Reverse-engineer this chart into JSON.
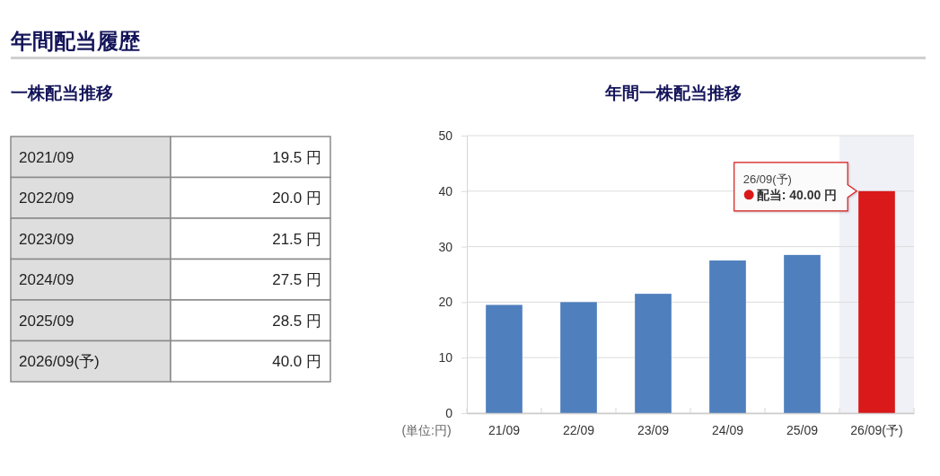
{
  "chart_data": [
    {
      "type": "other",
      "title": "年間配当履歴",
      "subtitle": "一株配当推移",
      "categories": [
        "2021/09",
        "2022/09",
        "2023/09",
        "2024/09",
        "2025/09",
        "2026/09(予)"
      ],
      "values": [
        19.5,
        20.0,
        21.5,
        27.5,
        28.5,
        40.0
      ],
      "value_labels": [
        "19.5 円",
        "20.0 円",
        "21.5 円",
        "27.5 円",
        "28.5 円",
        "40.0 円"
      ]
    },
    {
      "type": "bar",
      "title": "年間一株配当推移",
      "ylabel": "(単位:円)",
      "categories": [
        "21/09",
        "22/09",
        "23/09",
        "24/09",
        "25/09",
        "26/09(予)"
      ],
      "values": [
        19.5,
        20.0,
        21.5,
        27.5,
        28.5,
        40.0
      ],
      "colors": [
        "#4f7fbd",
        "#4f7fbd",
        "#4f7fbd",
        "#4f7fbd",
        "#4f7fbd",
        "#d9191a"
      ],
      "ylim": [
        0,
        50
      ],
      "yticks": [
        0,
        10,
        20,
        30,
        40,
        50
      ],
      "grid": "y",
      "bands": [
        {
          "axis": "x",
          "from": "26/09(予)",
          "to": "26/09(予)",
          "color": "#f0f0f7"
        }
      ],
      "annotations": [
        "26/09(予)",
        "配当: 40.00 円"
      ]
    }
  ]
}
